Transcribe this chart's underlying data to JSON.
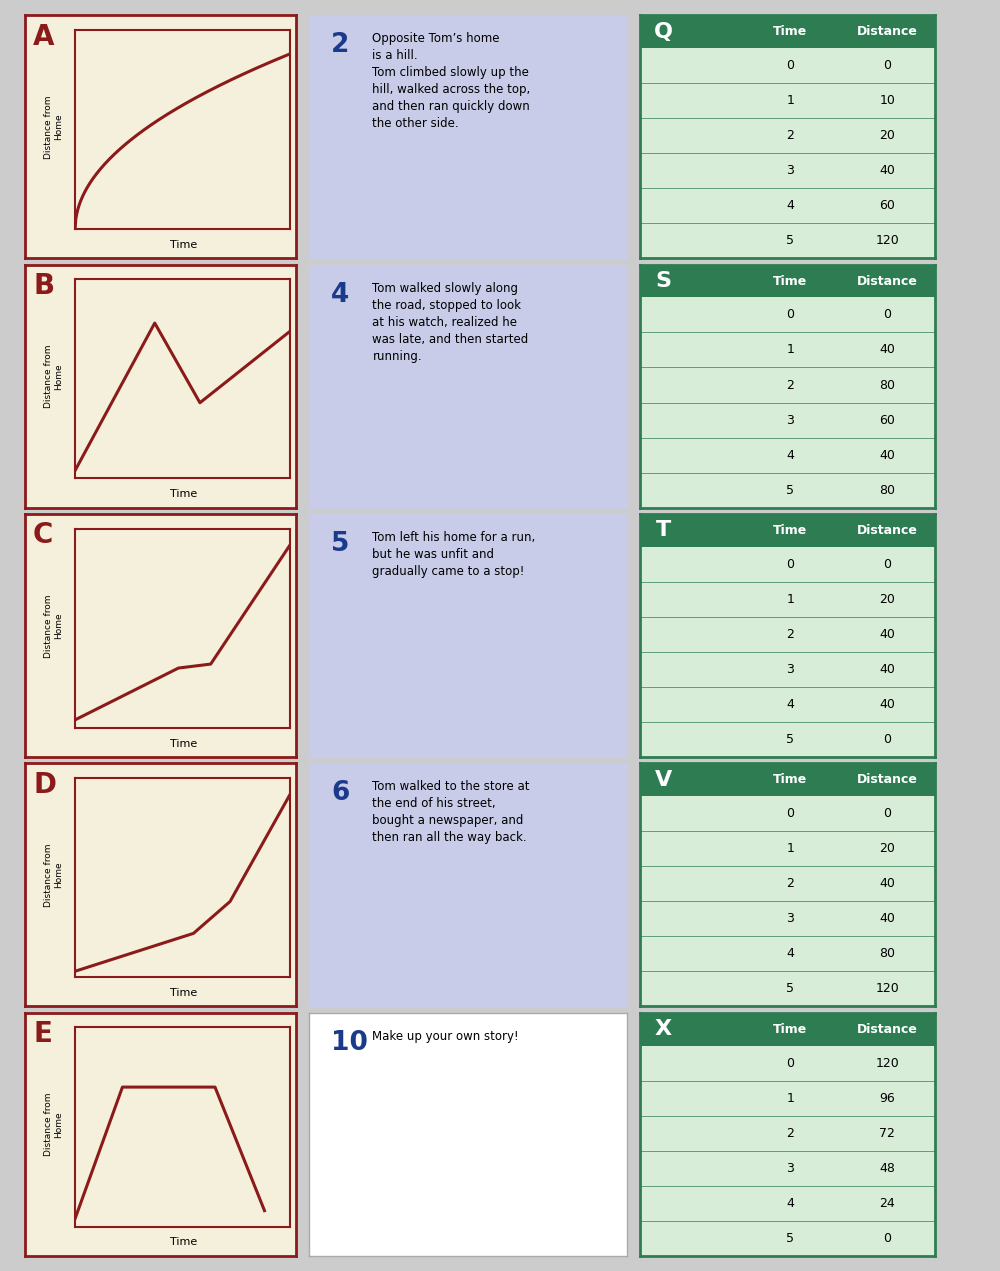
{
  "outer_bg": "#CCCCCC",
  "card_bg": "#F5F0DC",
  "card_border": "#8B1A1A",
  "line_color": "#8B1A1A",
  "story_bg": "#C8CCE8",
  "story_border": "#9999BB",
  "story10_bg": "#FFFFFF",
  "story10_border": "#AAAAAA",
  "table_header_bg": "#2E7D52",
  "table_header_text": "#FFFFFF",
  "table_row_bg": "#D8EDD8",
  "table_border": "#2E7D52",
  "label_color": "#8B1A1A",
  "number_color": "#1A3A8B",
  "graphs": [
    {
      "label": "A",
      "type": "concave"
    },
    {
      "label": "B",
      "type": "zigzag"
    },
    {
      "label": "C",
      "type": "slow_then_fast"
    },
    {
      "label": "D",
      "type": "accelerating"
    },
    {
      "label": "E",
      "type": "trapezoid"
    }
  ],
  "stories": [
    {
      "number": "2",
      "text": "Opposite Tom’s home\nis a hill.\nTom climbed slowly up the\nhill, walked across the top,\nand then ran quickly down\nthe other side."
    },
    {
      "number": "4",
      "text": "Tom walked slowly along\nthe road, stopped to look\nat his watch, realized he\nwas late, and then started\nrunning."
    },
    {
      "number": "5",
      "text": "Tom left his home for a run,\nbut he was unfit and\ngradually came to a stop!"
    },
    {
      "number": "6",
      "text": "Tom walked to the store at\nthe end of his street,\nbought a newspaper, and\nthen ran all the way back."
    },
    {
      "number": "10",
      "text": "Make up your own story!"
    }
  ],
  "tables": [
    {
      "label": "Q",
      "time": [
        0,
        1,
        2,
        3,
        4,
        5
      ],
      "distance": [
        0,
        10,
        20,
        40,
        60,
        120
      ]
    },
    {
      "label": "S",
      "time": [
        0,
        1,
        2,
        3,
        4,
        5
      ],
      "distance": [
        0,
        40,
        80,
        60,
        40,
        80
      ]
    },
    {
      "label": "T",
      "time": [
        0,
        1,
        2,
        3,
        4,
        5
      ],
      "distance": [
        0,
        20,
        40,
        40,
        40,
        0
      ]
    },
    {
      "label": "V",
      "time": [
        0,
        1,
        2,
        3,
        4,
        5
      ],
      "distance": [
        0,
        20,
        40,
        40,
        80,
        120
      ]
    },
    {
      "label": "X",
      "time": [
        0,
        1,
        2,
        3,
        4,
        5
      ],
      "distance": [
        120,
        96,
        72,
        48,
        24,
        0
      ]
    }
  ]
}
